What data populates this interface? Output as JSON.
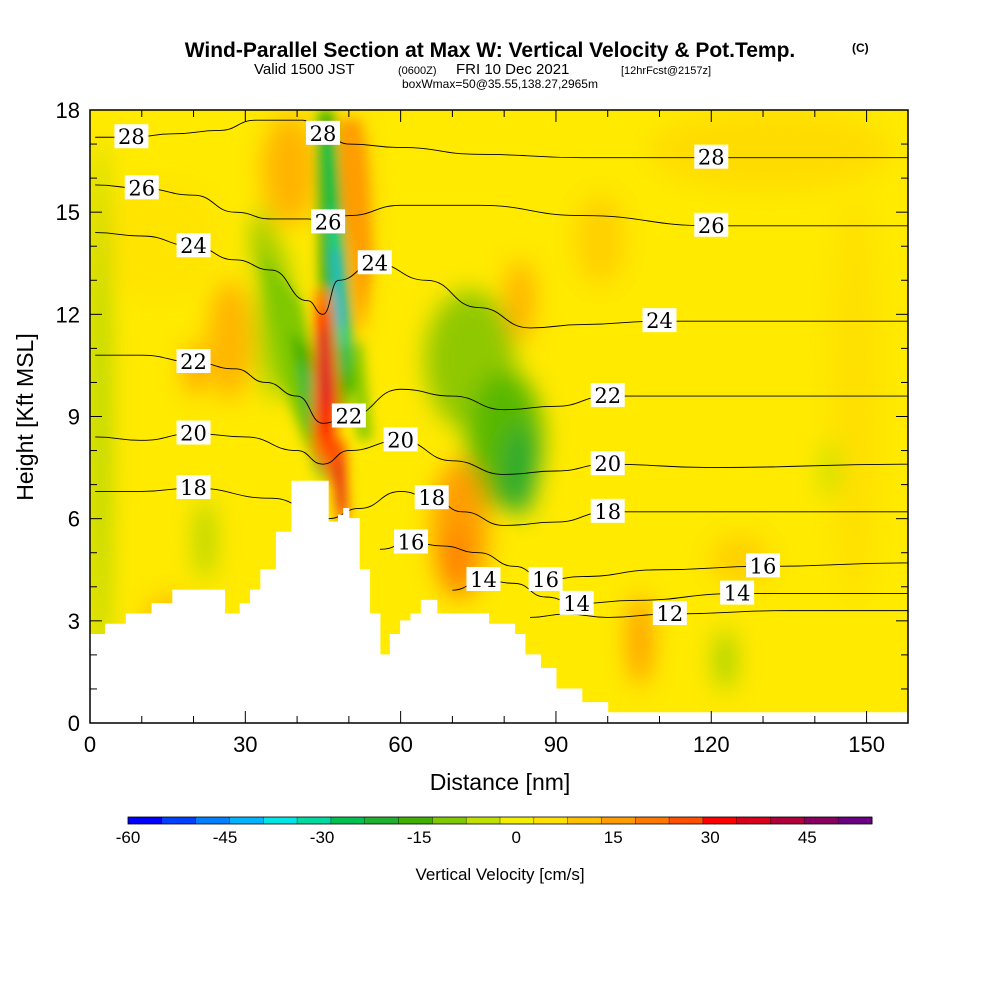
{
  "header": {
    "title": "Wind-Parallel Section at Max W: Vertical Velocity & Pot.Temp.",
    "copyright": "(C)",
    "valid_prefix": "Valid 1500 JST",
    "valid_z": "(0600Z)",
    "valid_date": "FRI 10 Dec 2021",
    "forecast": "[12hrFcst@2157z]",
    "box_info": "boxWmax=50@35.55,138.27,2965m"
  },
  "chart_data": {
    "type": "heatmap",
    "xlabel": "Distance [nm]",
    "ylabel": "Height [Kft MSL]",
    "xlim": [
      0,
      158
    ],
    "ylim": [
      0,
      18
    ],
    "x_ticks": [
      "0",
      "30",
      "60",
      "90",
      "120",
      "150"
    ],
    "y_ticks": [
      "0",
      "3",
      "6",
      "9",
      "12",
      "15",
      "18"
    ],
    "colorbar": {
      "title": "Vertical Velocity [cm/s]",
      "range": [
        -60,
        55
      ],
      "step": 5,
      "tick_labels": [
        "-60",
        "-45",
        "-30",
        "-15",
        "0",
        "15",
        "30",
        "45"
      ],
      "colors": [
        "#0000ff",
        "#0040ff",
        "#0080ff",
        "#00b4ff",
        "#00e6e6",
        "#00d9a0",
        "#00c050",
        "#20b030",
        "#40b000",
        "#80c800",
        "#c0e000",
        "#f0f000",
        "#ffe000",
        "#ffc000",
        "#ff9c00",
        "#ff7800",
        "#ff5000",
        "#ff0000",
        "#d8001c",
        "#b0003c",
        "#880060",
        "#6a0080"
      ]
    },
    "terrain_kft": [
      [
        0,
        2.6
      ],
      [
        3,
        2.9
      ],
      [
        7,
        3.2
      ],
      [
        12,
        3.5
      ],
      [
        16,
        3.9
      ],
      [
        26,
        3.2
      ],
      [
        29,
        3.5
      ],
      [
        31,
        3.9
      ],
      [
        33,
        4.5
      ],
      [
        36,
        5.6
      ],
      [
        39,
        7.1
      ],
      [
        45,
        7.1
      ],
      [
        46,
        5.9
      ],
      [
        47,
        5.9
      ],
      [
        48,
        6.1
      ],
      [
        49,
        6.3
      ],
      [
        50,
        6.0
      ],
      [
        52,
        4.5
      ],
      [
        54,
        3.2
      ],
      [
        56,
        2.0
      ],
      [
        58,
        2.6
      ],
      [
        60,
        3.0
      ],
      [
        62,
        3.2
      ],
      [
        64,
        3.6
      ],
      [
        67,
        3.2
      ],
      [
        74,
        3.2
      ],
      [
        77,
        2.9
      ],
      [
        82,
        2.6
      ],
      [
        84,
        2.0
      ],
      [
        87,
        1.6
      ],
      [
        90,
        1.0
      ],
      [
        95,
        0.6
      ],
      [
        100,
        0.3
      ],
      [
        158,
        0.3
      ]
    ],
    "theta_contours": [
      {
        "label": "28",
        "points": [
          [
            1,
            17.2
          ],
          [
            8,
            17.2
          ],
          [
            16,
            17.3
          ],
          [
            25,
            17.4
          ],
          [
            32,
            17.7
          ],
          [
            41,
            17.7
          ],
          [
            45,
            17.3
          ],
          [
            50,
            17.0
          ],
          [
            60,
            16.9
          ],
          [
            75,
            16.7
          ],
          [
            95,
            16.6
          ],
          [
            120,
            16.6
          ],
          [
            158,
            16.6
          ]
        ]
      },
      {
        "label": "26",
        "points": [
          [
            1,
            15.8
          ],
          [
            10,
            15.7
          ],
          [
            20,
            15.5
          ],
          [
            28,
            15.0
          ],
          [
            35,
            14.8
          ],
          [
            42,
            14.8
          ],
          [
            46,
            14.7
          ],
          [
            50,
            14.9
          ],
          [
            60,
            15.2
          ],
          [
            75,
            15.2
          ],
          [
            95,
            14.9
          ],
          [
            120,
            14.6
          ],
          [
            158,
            14.6
          ]
        ]
      },
      {
        "label": "24",
        "points": [
          [
            1,
            14.4
          ],
          [
            10,
            14.3
          ],
          [
            20,
            14.0
          ],
          [
            28,
            13.6
          ],
          [
            35,
            13.3
          ],
          [
            42,
            12.4
          ],
          [
            45,
            12.0
          ],
          [
            48,
            13.0
          ],
          [
            55,
            13.5
          ],
          [
            65,
            13.0
          ],
          [
            75,
            12.2
          ],
          [
            85,
            11.6
          ],
          [
            95,
            11.7
          ],
          [
            110,
            11.8
          ],
          [
            130,
            11.8
          ],
          [
            158,
            11.8
          ]
        ]
      },
      {
        "label": "22",
        "points": [
          [
            1,
            10.8
          ],
          [
            10,
            10.8
          ],
          [
            20,
            10.6
          ],
          [
            28,
            10.4
          ],
          [
            34,
            10.0
          ],
          [
            40,
            9.6
          ],
          [
            45,
            8.8
          ],
          [
            50,
            9.0
          ],
          [
            60,
            9.8
          ],
          [
            70,
            9.6
          ],
          [
            80,
            9.2
          ],
          [
            90,
            9.3
          ],
          [
            100,
            9.6
          ],
          [
            120,
            9.6
          ],
          [
            158,
            9.6
          ]
        ]
      },
      {
        "label": "20",
        "points": [
          [
            1,
            8.4
          ],
          [
            10,
            8.3
          ],
          [
            20,
            8.5
          ],
          [
            30,
            8.4
          ],
          [
            40,
            8.0
          ],
          [
            45,
            7.6
          ],
          [
            50,
            8.0
          ],
          [
            60,
            8.3
          ],
          [
            70,
            7.7
          ],
          [
            80,
            7.3
          ],
          [
            90,
            7.4
          ],
          [
            100,
            7.6
          ],
          [
            120,
            7.5
          ],
          [
            158,
            7.6
          ]
        ]
      },
      {
        "label": "18",
        "points": [
          [
            1,
            6.8
          ],
          [
            10,
            6.8
          ],
          [
            20,
            6.9
          ],
          [
            35,
            6.6
          ],
          [
            46,
            6.0
          ],
          [
            52,
            6.3
          ],
          [
            60,
            6.8
          ],
          [
            66,
            6.6
          ],
          [
            72,
            6.2
          ],
          [
            80,
            5.8
          ],
          [
            90,
            5.9
          ],
          [
            100,
            6.2
          ],
          [
            120,
            6.2
          ],
          [
            158,
            6.2
          ]
        ]
      },
      {
        "label": "16",
        "points": [
          [
            56,
            5.1
          ],
          [
            62,
            5.3
          ],
          [
            68,
            5.2
          ],
          [
            75,
            5.0
          ],
          [
            82,
            4.6
          ],
          [
            88,
            4.2
          ],
          [
            95,
            4.3
          ],
          [
            110,
            4.5
          ],
          [
            130,
            4.6
          ],
          [
            158,
            4.7
          ]
        ]
      },
      {
        "label": "14",
        "points": [
          [
            70,
            3.9
          ],
          [
            76,
            4.2
          ],
          [
            82,
            4.1
          ],
          [
            88,
            3.7
          ],
          [
            94,
            3.5
          ],
          [
            105,
            3.6
          ],
          [
            125,
            3.8
          ],
          [
            158,
            3.8
          ]
        ]
      },
      {
        "label": "12",
        "points": [
          [
            85,
            3.1
          ],
          [
            92,
            3.2
          ],
          [
            100,
            3.1
          ],
          [
            112,
            3.2
          ],
          [
            135,
            3.3
          ],
          [
            158,
            3.3
          ]
        ]
      }
    ]
  }
}
